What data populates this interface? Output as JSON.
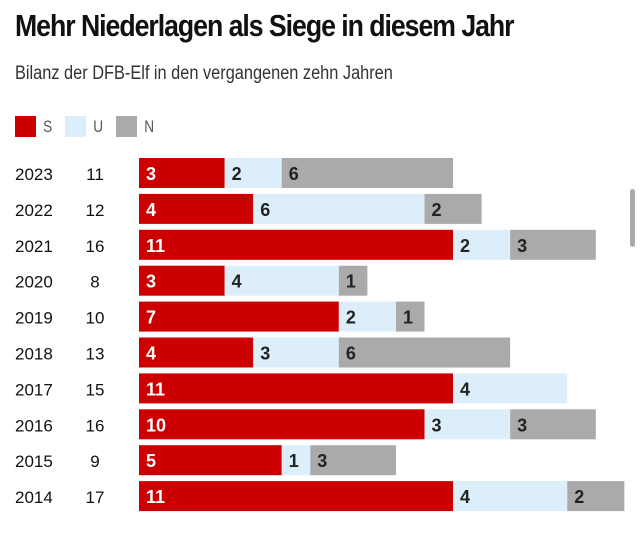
{
  "title": "Mehr Niederlagen als Siege in diesem Jahr",
  "subtitle": "Bilanz der DFB-Elf in den vergangenen zehn Jahren",
  "chart_data": {
    "type": "bar",
    "stacked": true,
    "orientation": "horizontal",
    "categories": [
      "2023",
      "2022",
      "2021",
      "2020",
      "2019",
      "2018",
      "2017",
      "2016",
      "2015",
      "2014"
    ],
    "totals": [
      11,
      12,
      16,
      8,
      10,
      13,
      15,
      16,
      9,
      17
    ],
    "series": [
      {
        "name": "S",
        "color": "#cc0000",
        "values": [
          3,
          4,
          11,
          3,
          7,
          4,
          11,
          10,
          5,
          11
        ]
      },
      {
        "name": "U",
        "color": "#dceefa",
        "values": [
          2,
          6,
          2,
          4,
          2,
          3,
          4,
          3,
          1,
          4
        ]
      },
      {
        "name": "N",
        "color": "#aaaaaa",
        "values": [
          6,
          2,
          3,
          1,
          1,
          6,
          0,
          3,
          3,
          2
        ]
      }
    ],
    "legend": "top-left"
  }
}
